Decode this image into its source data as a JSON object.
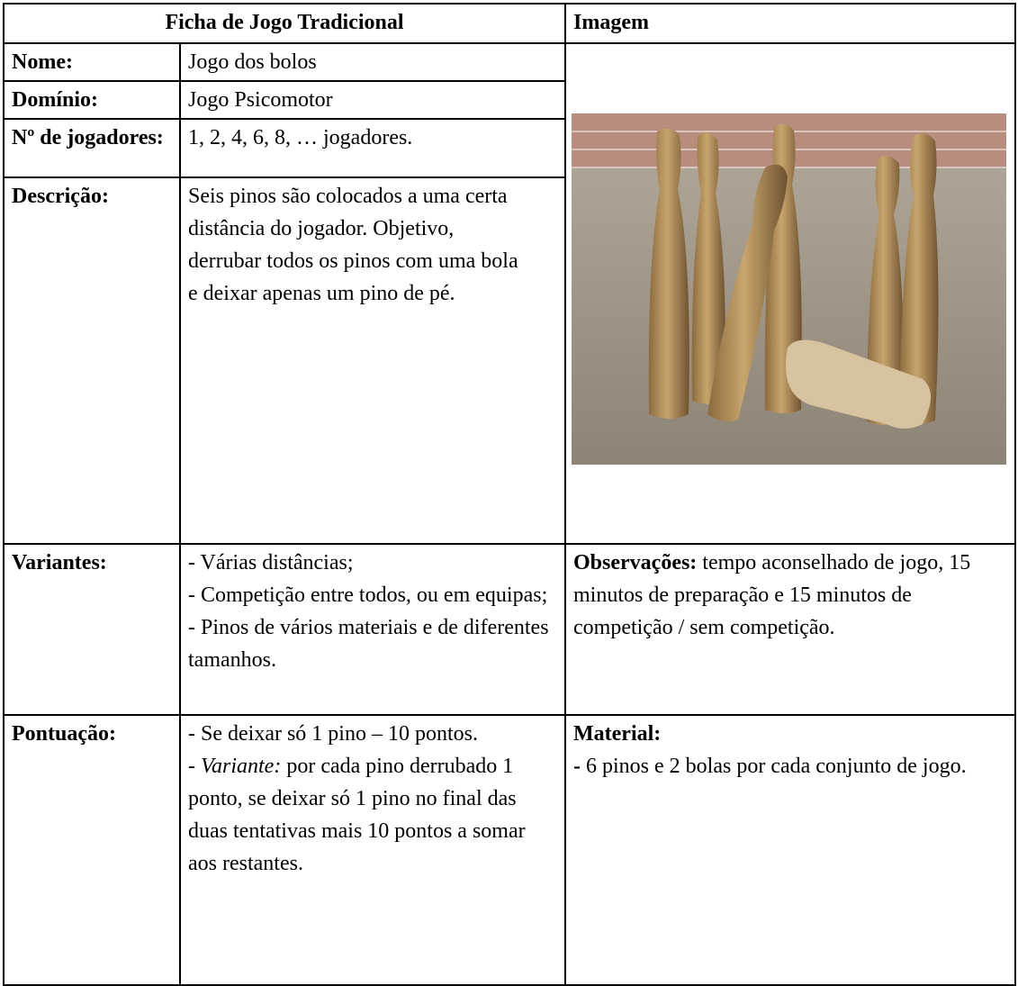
{
  "header": {
    "title": "Ficha de Jogo Tradicional",
    "image_title": "Imagem"
  },
  "table": {
    "rows": [
      [
        "Nome:",
        "Jogo dos bolos"
      ],
      [
        "Domínio:",
        "Jogo Psicomotor"
      ],
      [
        "Nº de jogadores:",
        "1, 2, 4, 6, 8, … jogadores."
      ],
      [
        "Descrição:",
        "Seis pinos são colocados a uma certa distância do jogador. Objetivo, derrubar todos os pinos com uma bola e deixar apenas um pino de pé."
      ]
    ]
  },
  "variants": {
    "label": "Variantes:",
    "items": [
      "- Várias distâncias;",
      "- Competição entre todos, ou em equipas;",
      "-  Pinos de vários materiais e de diferentes tamanhos."
    ]
  },
  "observations": {
    "label": "Observações:",
    "text": " tempo aconselhado de jogo, 15 minutos de preparação e 15 minutos de competição / sem competição."
  },
  "scoring": {
    "label": "Pontuação:",
    "item1": "- Se deixar só 1 pino – 10 pontos.",
    "item2_prefix": "- ",
    "item2_italic": "Variante:",
    "item2_text": " por cada pino derrubado 1 ponto, se deixar só 1 pino no final das duas tentativas mais 10 pontos a somar aos restantes."
  },
  "material": {
    "label": "Material:",
    "dash": "-",
    "text": " 6 pinos e 2 bolas por cada conjunto de jogo."
  }
}
